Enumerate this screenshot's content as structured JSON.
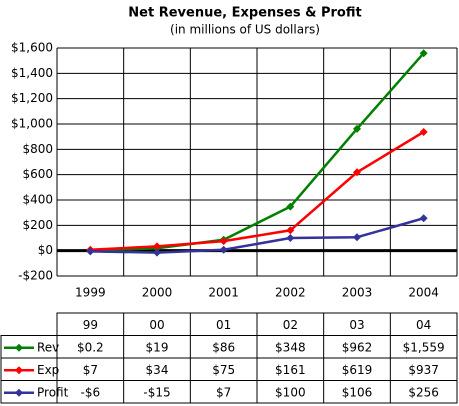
{
  "chart_data": {
    "type": "line",
    "title": "Net Revenue, Expenses & Profit",
    "subtitle": "(in millions of US dollars)",
    "categories": [
      "1999",
      "2000",
      "2001",
      "2002",
      "2003",
      "2004"
    ],
    "table_header": [
      "99",
      "00",
      "01",
      "02",
      "03",
      "04"
    ],
    "series": [
      {
        "name": "Rev",
        "color": "#008000",
        "values": [
          0.2,
          19,
          86,
          348,
          962,
          1559
        ],
        "value_labels": [
          "$0.2",
          "$19",
          "$86",
          "$348",
          "$962",
          "$1,559"
        ]
      },
      {
        "name": "Exp",
        "color": "#ff0000",
        "values": [
          7,
          34,
          75,
          161,
          619,
          937
        ],
        "value_labels": [
          "$7",
          "$34",
          "$75",
          "$161",
          "$619",
          "$937"
        ]
      },
      {
        "name": "Profit",
        "color": "#333399",
        "values": [
          -6,
          -15,
          7,
          100,
          106,
          256
        ],
        "value_labels": [
          "-$6",
          "-$15",
          "$7",
          "$100",
          "$106",
          "$256"
        ]
      }
    ],
    "ylim": [
      -200,
      1600
    ],
    "yticks": [
      {
        "value": -200,
        "label": "-$200"
      },
      {
        "value": 0,
        "label": "$0"
      },
      {
        "value": 200,
        "label": "$200"
      },
      {
        "value": 400,
        "label": "$400"
      },
      {
        "value": 600,
        "label": "$600"
      },
      {
        "value": 800,
        "label": "$800"
      },
      {
        "value": 1000,
        "label": "$1,000"
      },
      {
        "value": 1200,
        "label": "$1,200"
      },
      {
        "value": 1400,
        "label": "$1,400"
      },
      {
        "value": 1600,
        "label": "$1,600"
      }
    ],
    "grid": true
  }
}
